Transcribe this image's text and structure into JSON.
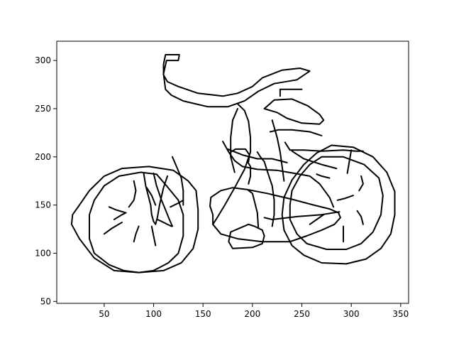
{
  "chart_data": {
    "type": "line",
    "title": "",
    "xlabel": "",
    "ylabel": "",
    "xlim": [
      2,
      358
    ],
    "ylim": [
      48,
      320
    ],
    "grid": false,
    "legend": "none",
    "line_color": "#000000",
    "x_ticks": [
      50,
      100,
      150,
      200,
      250,
      300,
      350
    ],
    "y_ticks": [
      50,
      100,
      150,
      200,
      250,
      300
    ],
    "series": [
      {
        "points": [
          [
            125,
            155
          ],
          [
            113,
            170
          ],
          [
            103,
            182
          ],
          [
            87,
            184
          ],
          [
            65,
            180
          ],
          [
            50,
            170
          ],
          [
            40,
            155
          ],
          [
            35,
            140
          ],
          [
            35,
            115
          ],
          [
            40,
            100
          ],
          [
            55,
            88
          ],
          [
            70,
            82
          ],
          [
            85,
            80
          ],
          [
            100,
            82
          ],
          [
            115,
            90
          ],
          [
            125,
            100
          ],
          [
            130,
            118
          ],
          [
            130,
            140
          ],
          [
            125,
            155
          ]
        ]
      },
      {
        "points": [
          [
            95,
            190
          ],
          [
            120,
            186
          ],
          [
            135,
            175
          ],
          [
            143,
            165
          ],
          [
            145,
            145
          ],
          [
            145,
            125
          ],
          [
            140,
            105
          ],
          [
            128,
            90
          ],
          [
            110,
            82
          ],
          [
            85,
            80
          ],
          [
            60,
            82
          ],
          [
            40,
            95
          ],
          [
            25,
            115
          ],
          [
            17,
            130
          ],
          [
            18,
            140
          ],
          [
            25,
            150
          ],
          [
            35,
            165
          ],
          [
            50,
            180
          ],
          [
            68,
            188
          ],
          [
            95,
            190
          ]
        ]
      },
      {
        "points": [
          [
            270,
            200
          ],
          [
            292,
            200
          ],
          [
            313,
            192
          ],
          [
            328,
            178
          ],
          [
            332,
            160
          ],
          [
            330,
            140
          ],
          [
            322,
            122
          ],
          [
            310,
            110
          ],
          [
            295,
            104
          ],
          [
            275,
            104
          ],
          [
            255,
            110
          ],
          [
            245,
            120
          ],
          [
            238,
            135
          ],
          [
            238,
            150
          ],
          [
            240,
            165
          ],
          [
            248,
            180
          ],
          [
            258,
            192
          ],
          [
            270,
            200
          ]
        ]
      },
      {
        "points": [
          [
            280,
            212
          ],
          [
            302,
            210
          ],
          [
            322,
            200
          ],
          [
            336,
            184
          ],
          [
            344,
            164
          ],
          [
            344,
            140
          ],
          [
            340,
            120
          ],
          [
            330,
            105
          ],
          [
            315,
            94
          ],
          [
            295,
            89
          ],
          [
            270,
            90
          ],
          [
            252,
            98
          ],
          [
            240,
            108
          ],
          [
            232,
            124
          ],
          [
            230,
            140
          ],
          [
            232,
            158
          ],
          [
            240,
            176
          ],
          [
            252,
            192
          ],
          [
            265,
            204
          ],
          [
            280,
            212
          ]
        ]
      },
      {
        "points": [
          [
            113,
            300
          ],
          [
            125,
            300
          ],
          [
            126,
            306
          ],
          [
            112,
            306
          ],
          [
            110,
            296
          ],
          [
            110,
            285
          ],
          [
            114,
            278
          ],
          [
            125,
            273
          ],
          [
            145,
            266
          ],
          [
            170,
            263
          ],
          [
            185,
            266
          ],
          [
            200,
            273
          ],
          [
            210,
            282
          ],
          [
            230,
            290
          ],
          [
            248,
            292
          ],
          [
            258,
            289
          ],
          [
            245,
            280
          ],
          [
            222,
            276
          ],
          [
            206,
            268
          ],
          [
            192,
            258
          ],
          [
            175,
            252
          ],
          [
            155,
            252
          ],
          [
            130,
            258
          ],
          [
            118,
            264
          ],
          [
            112,
            270
          ],
          [
            110,
            286
          ],
          [
            113,
            300
          ]
        ]
      },
      {
        "points": [
          [
            212,
            250
          ],
          [
            222,
            259
          ],
          [
            240,
            260
          ],
          [
            256,
            253
          ],
          [
            268,
            244
          ],
          [
            272,
            238
          ],
          [
            268,
            234
          ],
          [
            250,
            235
          ],
          [
            235,
            240
          ],
          [
            225,
            246
          ],
          [
            212,
            250
          ]
        ]
      },
      {
        "points": [
          [
            228,
            263
          ],
          [
            228,
            270
          ],
          [
            250,
            270
          ]
        ]
      },
      {
        "points": [
          [
            185,
            255
          ],
          [
            192,
            248
          ],
          [
            196,
            237
          ],
          [
            198,
            220
          ],
          [
            198,
            205
          ],
          [
            192,
            187
          ],
          [
            182,
            168
          ],
          [
            172,
            150
          ],
          [
            165,
            138
          ],
          [
            160,
            130
          ]
        ]
      },
      {
        "points": [
          [
            185,
            250
          ],
          [
            180,
            238
          ],
          [
            178,
            220
          ],
          [
            178,
            200
          ],
          [
            182,
            184
          ]
        ]
      },
      {
        "points": [
          [
            90,
            183
          ],
          [
            92,
            170
          ],
          [
            95,
            158
          ],
          [
            97,
            150
          ],
          [
            98,
            140
          ],
          [
            100,
            133
          ],
          [
            102,
            130
          ],
          [
            104,
            138
          ],
          [
            106,
            150
          ],
          [
            110,
            168
          ],
          [
            114,
            180
          ]
        ]
      },
      {
        "points": [
          [
            100,
            183
          ],
          [
            103,
            170
          ],
          [
            108,
            155
          ],
          [
            112,
            145
          ],
          [
            116,
            135
          ],
          [
            119,
            128
          ]
        ]
      },
      {
        "points": [
          [
            119,
            200
          ],
          [
            124,
            188
          ],
          [
            128,
            178
          ],
          [
            130,
            165
          ],
          [
            130,
            150
          ]
        ]
      },
      {
        "points": [
          [
            160,
            130
          ],
          [
            168,
            120
          ],
          [
            185,
            115
          ],
          [
            210,
            112
          ],
          [
            238,
            112
          ],
          [
            255,
            118
          ],
          [
            270,
            124
          ],
          [
            283,
            130
          ],
          [
            289,
            137
          ],
          [
            287,
            142
          ],
          [
            278,
            146
          ],
          [
            262,
            150
          ],
          [
            240,
            156
          ],
          [
            215,
            162
          ],
          [
            195,
            166
          ],
          [
            180,
            168
          ],
          [
            168,
            165
          ],
          [
            158,
            158
          ],
          [
            157,
            149
          ],
          [
            160,
            140
          ],
          [
            160,
            130
          ]
        ]
      },
      {
        "points": [
          [
            170,
            216
          ],
          [
            176,
            205
          ],
          [
            182,
            196
          ],
          [
            190,
            190
          ],
          [
            205,
            187
          ],
          [
            225,
            186
          ],
          [
            242,
            183
          ],
          [
            258,
            180
          ],
          [
            268,
            172
          ],
          [
            278,
            158
          ],
          [
            282,
            148
          ]
        ]
      },
      {
        "points": [
          [
            175,
            208
          ],
          [
            190,
            202
          ],
          [
            205,
            198
          ],
          [
            220,
            198
          ],
          [
            235,
            194
          ]
        ]
      },
      {
        "points": [
          [
            205,
            205
          ],
          [
            208,
            200
          ],
          [
            212,
            195
          ],
          [
            215,
            185
          ],
          [
            220,
            170
          ],
          [
            222,
            155
          ],
          [
            222,
            140
          ],
          [
            220,
            128
          ]
        ]
      },
      {
        "points": [
          [
            220,
            238
          ],
          [
            225,
            220
          ],
          [
            228,
            205
          ],
          [
            230,
            190
          ],
          [
            232,
            175
          ]
        ]
      },
      {
        "points": [
          [
            233,
            215
          ],
          [
            238,
            207
          ],
          [
            252,
            207
          ],
          [
            270,
            206
          ],
          [
            292,
            207
          ],
          [
            305,
            206
          ],
          [
            312,
            206
          ]
        ]
      },
      {
        "points": [
          [
            240,
            206
          ],
          [
            252,
            198
          ],
          [
            270,
            192
          ],
          [
            285,
            188
          ]
        ]
      },
      {
        "points": [
          [
            300,
            207
          ],
          [
            298,
            195
          ],
          [
            296,
            183
          ]
        ]
      },
      {
        "points": [
          [
            178,
            205
          ],
          [
            183,
            208
          ],
          [
            193,
            208
          ],
          [
            197,
            202
          ],
          [
            196,
            195
          ]
        ]
      },
      {
        "points": [
          [
            195,
            195
          ],
          [
            198,
            190
          ],
          [
            198,
            180
          ],
          [
            196,
            172
          ]
        ]
      },
      {
        "points": [
          [
            195,
            166
          ],
          [
            200,
            162
          ],
          [
            205,
            142
          ],
          [
            206,
            126
          ]
        ]
      },
      {
        "points": [
          [
            212,
            137
          ],
          [
            220,
            135
          ],
          [
            245,
            138
          ],
          [
            270,
            140
          ],
          [
            288,
            143
          ]
        ]
      },
      {
        "points": [
          [
            196,
            130
          ],
          [
            202,
            128
          ],
          [
            210,
            124
          ],
          [
            212,
            118
          ],
          [
            210,
            110
          ],
          [
            200,
            106
          ],
          [
            180,
            105
          ],
          [
            176,
            112
          ],
          [
            178,
            122
          ],
          [
            196,
            130
          ]
        ]
      },
      {
        "points": [
          [
            218,
            226
          ],
          [
            226,
            228
          ],
          [
            240,
            228
          ],
          [
            258,
            226
          ],
          [
            270,
            222
          ]
        ]
      },
      {
        "points": [
          [
            80,
            175
          ],
          [
            82,
            165
          ],
          [
            80,
            155
          ],
          [
            75,
            148
          ]
        ]
      },
      {
        "points": [
          [
            93,
            168
          ],
          [
            98,
            160
          ],
          [
            102,
            150
          ]
        ]
      },
      {
        "points": [
          [
            117,
            148
          ],
          [
            125,
            152
          ],
          [
            130,
            155
          ]
        ]
      },
      {
        "points": [
          [
            55,
            148
          ],
          [
            62,
            145
          ],
          [
            72,
            142
          ]
        ]
      },
      {
        "points": [
          [
            50,
            120
          ],
          [
            58,
            126
          ],
          [
            68,
            132
          ]
        ]
      },
      {
        "points": [
          [
            80,
            112
          ],
          [
            82,
            120
          ],
          [
            85,
            128
          ]
        ]
      },
      {
        "points": [
          [
            102,
            108
          ],
          [
            100,
            118
          ],
          [
            98,
            128
          ]
        ]
      },
      {
        "points": [
          [
            118,
            128
          ],
          [
            108,
            133
          ],
          [
            104,
            135
          ]
        ]
      },
      {
        "points": [
          [
            60,
            135
          ],
          [
            68,
            140
          ],
          [
            72,
            142
          ]
        ]
      },
      {
        "points": [
          [
            286,
            155
          ],
          [
            294,
            157
          ],
          [
            302,
            160
          ]
        ]
      },
      {
        "points": [
          [
            265,
            182
          ],
          [
            270,
            180
          ],
          [
            278,
            178
          ]
        ]
      },
      {
        "points": [
          [
            258,
            130
          ],
          [
            265,
            135
          ],
          [
            272,
            140
          ]
        ]
      },
      {
        "points": [
          [
            292,
            112
          ],
          [
            292,
            120
          ],
          [
            292,
            128
          ]
        ]
      },
      {
        "points": [
          [
            312,
            130
          ],
          [
            310,
            138
          ],
          [
            306,
            144
          ]
        ]
      },
      {
        "points": [
          [
            310,
            180
          ],
          [
            312,
            172
          ],
          [
            308,
            165
          ]
        ]
      }
    ]
  }
}
